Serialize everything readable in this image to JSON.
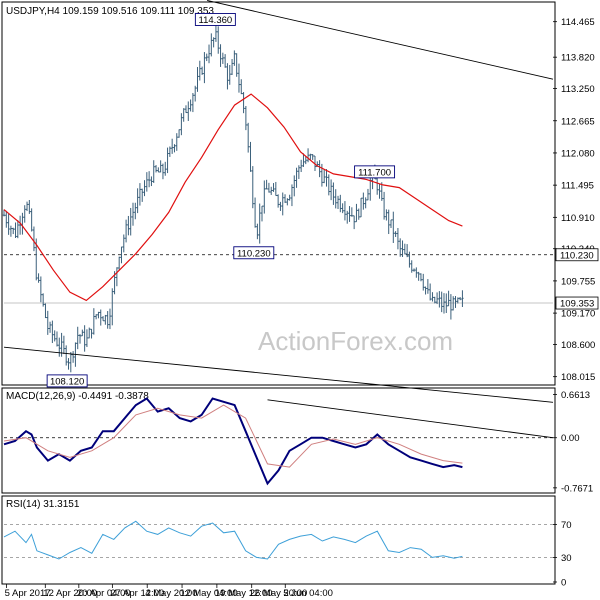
{
  "chart_data": [
    {
      "type": "candlestick",
      "header": "USDJPY,H4  109.159 109.516 109.111 109.353",
      "symbol": "USDJPY",
      "timeframe": "H4",
      "last_ohlc": {
        "open": 109.159,
        "high": 109.516,
        "low": 109.111,
        "close": 109.353
      },
      "ylim": [
        107.9,
        114.75
      ],
      "price_ticks": [
        "114.465",
        "113.820",
        "113.250",
        "112.665",
        "112.080",
        "111.495",
        "110.910",
        "110.340",
        "109.755",
        "109.170",
        "108.600",
        "108.015"
      ],
      "axis_markers": [
        {
          "label": "110.230",
          "value": 110.23,
          "color": "#000000"
        },
        {
          "label": "109.353",
          "value": 109.353,
          "color": "#000000"
        }
      ],
      "annotations": [
        {
          "label": "114.360",
          "x": 0.385,
          "value": 114.36
        },
        {
          "label": "111.700",
          "x": 0.675,
          "value": 111.7
        },
        {
          "label": "110.230",
          "x": 0.455,
          "value": 110.23
        },
        {
          "label": "108.120",
          "x": 0.115,
          "value": 108.12
        }
      ],
      "horizontal_lines": [
        110.23,
        109.353
      ],
      "trendlines": [
        {
          "x": [
            0.0,
            1.0
          ],
          "y": [
            108.55,
            107.55
          ]
        },
        {
          "x": [
            0.37,
            1.0
          ],
          "y": [
            114.85,
            113.42
          ]
        }
      ],
      "close_path": {
        "x": [
          0.0,
          0.02,
          0.04,
          0.05,
          0.06,
          0.08,
          0.1,
          0.12,
          0.135,
          0.15,
          0.17,
          0.19,
          0.21,
          0.23,
          0.25,
          0.27,
          0.29,
          0.31,
          0.33,
          0.35,
          0.37,
          0.385,
          0.4,
          0.41,
          0.42,
          0.44,
          0.45,
          0.46,
          0.47,
          0.48,
          0.5,
          0.52,
          0.54,
          0.56,
          0.58,
          0.6,
          0.62,
          0.64,
          0.66,
          0.67,
          0.68,
          0.69,
          0.71,
          0.72,
          0.74,
          0.75,
          0.76,
          0.77,
          0.78,
          0.79,
          0.8,
          0.81,
          0.82,
          0.83,
          0.835
        ],
        "y": [
          110.95,
          110.6,
          111.2,
          110.7,
          109.8,
          108.9,
          108.6,
          108.3,
          108.8,
          108.65,
          109.2,
          109.05,
          110.3,
          110.9,
          111.35,
          111.7,
          111.75,
          112.3,
          112.85,
          113.3,
          113.9,
          114.2,
          113.7,
          113.4,
          113.8,
          112.7,
          111.6,
          110.6,
          111.2,
          111.45,
          111.2,
          111.35,
          111.9,
          112.0,
          111.65,
          111.3,
          111.1,
          110.9,
          111.35,
          111.65,
          111.5,
          111.05,
          110.65,
          110.35,
          110.05,
          110.0,
          109.85,
          109.55,
          109.35,
          109.4,
          109.3,
          109.35,
          109.3,
          109.35,
          109.353
        ]
      },
      "ma": {
        "x": [
          0.0,
          0.03,
          0.06,
          0.09,
          0.12,
          0.15,
          0.18,
          0.21,
          0.24,
          0.27,
          0.3,
          0.33,
          0.36,
          0.39,
          0.42,
          0.45,
          0.48,
          0.51,
          0.54,
          0.57,
          0.6,
          0.63,
          0.66,
          0.69,
          0.72,
          0.75,
          0.78,
          0.81,
          0.835
        ],
        "y": [
          111.05,
          110.8,
          110.4,
          109.95,
          109.55,
          109.4,
          109.65,
          109.95,
          110.25,
          110.6,
          111.0,
          111.55,
          112.0,
          112.5,
          112.95,
          113.15,
          112.9,
          112.55,
          112.1,
          111.85,
          111.7,
          111.65,
          111.6,
          111.5,
          111.45,
          111.25,
          111.05,
          110.85,
          110.75
        ]
      }
    },
    {
      "type": "line",
      "title": "MACD(12,26,9) -0.4491 -0.3878",
      "ylim": [
        -0.8,
        0.7
      ],
      "ticks": [
        "0.6613",
        "0.00",
        "-0.7671"
      ],
      "tick_values": [
        0.6613,
        0.0,
        -0.7671
      ],
      "series": [
        {
          "role": "main",
          "x": [
            0.0,
            0.02,
            0.04,
            0.05,
            0.06,
            0.08,
            0.1,
            0.12,
            0.14,
            0.16,
            0.18,
            0.2,
            0.22,
            0.24,
            0.26,
            0.28,
            0.3,
            0.32,
            0.34,
            0.36,
            0.38,
            0.4,
            0.42,
            0.44,
            0.46,
            0.48,
            0.5,
            0.52,
            0.54,
            0.56,
            0.58,
            0.6,
            0.62,
            0.64,
            0.66,
            0.68,
            0.7,
            0.72,
            0.74,
            0.76,
            0.78,
            0.8,
            0.82,
            0.835
          ],
          "y": [
            -0.1,
            -0.05,
            0.1,
            0.05,
            -0.15,
            -0.35,
            -0.25,
            -0.35,
            -0.2,
            -0.15,
            0.1,
            0.1,
            0.3,
            0.5,
            0.6,
            0.4,
            0.45,
            0.3,
            0.25,
            0.35,
            0.6,
            0.55,
            0.5,
            0.1,
            -0.3,
            -0.7,
            -0.5,
            -0.2,
            -0.1,
            0.0,
            0.0,
            -0.05,
            -0.1,
            -0.15,
            -0.1,
            0.05,
            -0.1,
            -0.2,
            -0.3,
            -0.35,
            -0.4,
            -0.45,
            -0.42,
            -0.4491
          ]
        },
        {
          "role": "signal",
          "x": [
            0.0,
            0.04,
            0.08,
            0.12,
            0.16,
            0.2,
            0.24,
            0.28,
            0.32,
            0.36,
            0.4,
            0.44,
            0.48,
            0.52,
            0.56,
            0.6,
            0.64,
            0.68,
            0.72,
            0.76,
            0.8,
            0.835
          ],
          "y": [
            -0.05,
            0.0,
            -0.2,
            -0.3,
            -0.2,
            0.0,
            0.35,
            0.45,
            0.35,
            0.3,
            0.5,
            0.3,
            -0.4,
            -0.45,
            -0.1,
            -0.02,
            -0.1,
            0.0,
            -0.1,
            -0.25,
            -0.35,
            -0.3878
          ]
        }
      ],
      "trendline": {
        "x": [
          0.48,
          1.0
        ],
        "y": [
          0.58,
          0.0
        ]
      }
    },
    {
      "type": "line",
      "title": "RSI(14) 31.3151",
      "ylim": [
        0,
        100
      ],
      "ticks": [
        "70",
        "30",
        "0"
      ],
      "tick_values": [
        70,
        30,
        0
      ],
      "reference_lines": [
        70,
        30
      ],
      "series": [
        {
          "role": "rsi",
          "x": [
            0.0,
            0.02,
            0.04,
            0.05,
            0.06,
            0.08,
            0.1,
            0.12,
            0.14,
            0.16,
            0.18,
            0.2,
            0.22,
            0.24,
            0.26,
            0.28,
            0.3,
            0.32,
            0.34,
            0.36,
            0.38,
            0.4,
            0.42,
            0.44,
            0.46,
            0.48,
            0.5,
            0.52,
            0.54,
            0.56,
            0.58,
            0.6,
            0.62,
            0.64,
            0.66,
            0.68,
            0.7,
            0.72,
            0.74,
            0.76,
            0.78,
            0.8,
            0.82,
            0.835
          ],
          "y": [
            55,
            62,
            48,
            58,
            38,
            33,
            28,
            36,
            42,
            35,
            58,
            52,
            66,
            74,
            62,
            58,
            66,
            60,
            56,
            68,
            72,
            60,
            62,
            38,
            30,
            28,
            46,
            52,
            56,
            58,
            50,
            55,
            52,
            48,
            56,
            62,
            38,
            36,
            42,
            40,
            30,
            32,
            29,
            31.3151
          ]
        }
      ]
    }
  ],
  "x_labels": [
    "5 Apr 2017",
    "12 Apr 20:00",
    "20 Apr 04:00",
    "27 Apr 12:00",
    "4 May 20:00",
    "12 May 04:00",
    "19 May 12:00",
    "26 May 20:00",
    "5 Jun 04:00"
  ],
  "x_label_positions": [
    0.01,
    0.16,
    0.29,
    0.42,
    0.555,
    0.69,
    0.825,
    0.96,
    1.09
  ],
  "watermark": "ActionForex.com",
  "colors": {
    "candle": "#3a5f7a",
    "ma": "#e01010",
    "macd": "#00007a",
    "signal": "#d08080",
    "rsi": "#3ea0d8",
    "grid": "#000000"
  }
}
